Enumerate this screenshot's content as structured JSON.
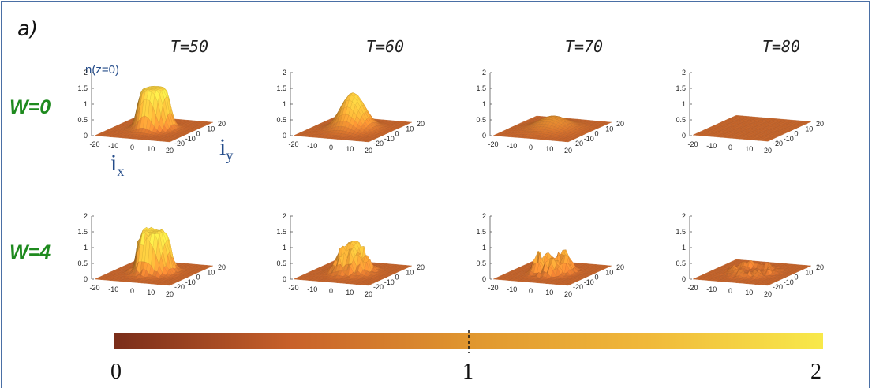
{
  "panel_label": "a)",
  "chart_data": {
    "type": "surface",
    "columns": [
      "T=50",
      "T=60",
      "T=70",
      "T=80"
    ],
    "rows": [
      "W=0",
      "W=4"
    ],
    "zlabel": "n(z=0)",
    "xlabel": "i",
    "xlabel_sub": "x",
    "ylabel": "i",
    "ylabel_sub": "y",
    "x_ticks": [
      "-20",
      "-10",
      "0",
      "10",
      "20"
    ],
    "y_ticks": [
      "-20",
      "-10",
      "0",
      "10",
      "20"
    ],
    "z_ticks": [
      "0",
      "0.5",
      "1",
      "1.5",
      "2"
    ],
    "zlim": [
      0,
      2
    ],
    "xlim": [
      -20,
      20
    ],
    "ylim": [
      -20,
      20
    ],
    "panels": [
      {
        "row": "W=0",
        "column": "T=50",
        "peak": 1.3,
        "width": 8,
        "profile": "plateau",
        "disorder": 0
      },
      {
        "row": "W=0",
        "column": "T=60",
        "peak": 1.15,
        "width": 8,
        "profile": "dome",
        "disorder": 0
      },
      {
        "row": "W=0",
        "column": "T=70",
        "peak": 0.4,
        "width": 10,
        "profile": "dome",
        "disorder": 0
      },
      {
        "row": "W=0",
        "column": "T=80",
        "peak": 0.02,
        "width": 12,
        "profile": "flat",
        "disorder": 0
      },
      {
        "row": "W=4",
        "column": "T=50",
        "peak": 1.3,
        "width": 8,
        "profile": "plateau",
        "disorder": 0.3
      },
      {
        "row": "W=4",
        "column": "T=60",
        "peak": 1.0,
        "width": 7,
        "profile": "dome",
        "disorder": 0.5
      },
      {
        "row": "W=4",
        "column": "T=70",
        "peak": 0.25,
        "width": 7,
        "profile": "ring",
        "disorder": 0.6
      },
      {
        "row": "W=4",
        "column": "T=80",
        "peak": 0.08,
        "width": 9,
        "profile": "ring",
        "disorder": 0.25
      }
    ],
    "colorbar": {
      "min": 0,
      "max": 2,
      "marker": 1,
      "tick_labels": [
        "0",
        "1",
        "2"
      ],
      "colors": [
        "#7a2d1a",
        "#c8612a",
        "#e0962f",
        "#f0b83a",
        "#f8e94a"
      ]
    }
  }
}
